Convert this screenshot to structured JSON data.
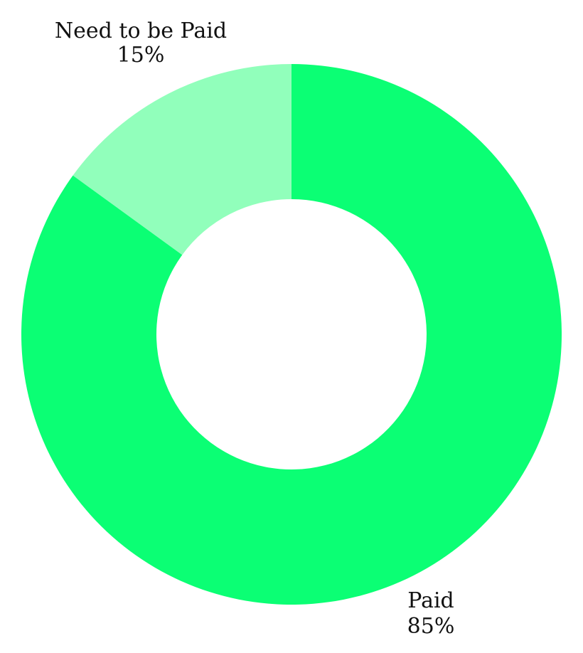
{
  "chart_data": {
    "type": "pie",
    "variant": "donut",
    "title": "",
    "slices": [
      {
        "label": "Paid",
        "value": 85,
        "value_label": "85%",
        "color": "#0bff74"
      },
      {
        "label": "Need to be Paid",
        "value": 15,
        "value_label": "15%",
        "color": "#91ffbb"
      }
    ],
    "start_angle_deg": 0,
    "direction": "clockwise",
    "legend": "none",
    "labels_outside": true
  }
}
